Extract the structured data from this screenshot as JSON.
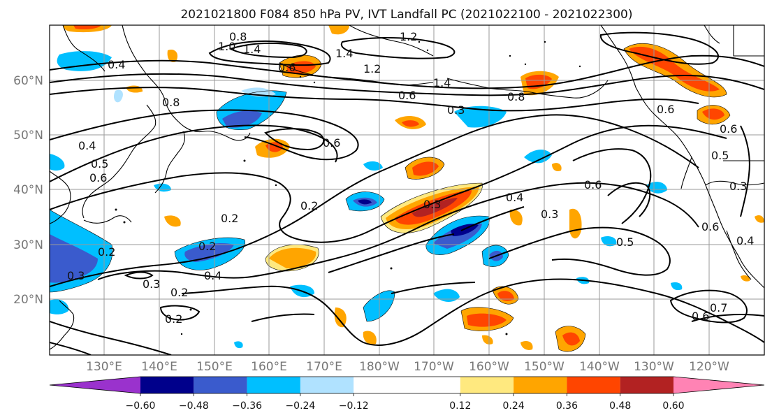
{
  "title": "2021021800 F084 850 hPa PV, IVT Landfall PC (2021022100 - 2021022300)",
  "map": {
    "lat_ticks": [
      "60°N",
      "50°N",
      "40°N",
      "30°N",
      "20°N"
    ],
    "lon_ticks": [
      "130°E",
      "140°E",
      "150°E",
      "160°E",
      "170°E",
      "180°W",
      "170°W",
      "160°W",
      "150°W",
      "140°W",
      "130°W",
      "120°W"
    ],
    "contour_color": "#000000",
    "grid_color": "#9a9a9a",
    "coastline_color": "#000000",
    "contour_labels": [
      "0.8",
      "1.0",
      "1.4",
      "1.2",
      "1.4",
      "0.6",
      "1.2",
      "0.8",
      "1.4",
      "0.8",
      "0.6",
      "0.3",
      "0.4",
      "0.6",
      "0.5",
      "0.6",
      "0.2",
      "0.2",
      "0.2",
      "0.3",
      "0.2",
      "0.4",
      "0.3",
      "0.2",
      "0.4",
      "0.6",
      "0.3",
      "0.5",
      "0.3",
      "0.5",
      "0.7",
      "0.6",
      "0.6",
      "0.4",
      "0.3",
      "0.2",
      "0.6",
      "0.4",
      "0.6"
    ]
  },
  "colorbar": {
    "tick_labels": [
      "−0.60",
      "−0.48",
      "−0.36",
      "−0.24",
      "−0.12",
      "0.12",
      "0.24",
      "0.36",
      "0.48",
      "0.60"
    ],
    "levels": [
      -0.72,
      -0.6,
      -0.48,
      -0.36,
      -0.24,
      -0.12,
      0.12,
      0.24,
      0.36,
      0.48,
      0.6,
      0.72
    ],
    "under_color": "#9a32cd",
    "over_color": "#ff83b4",
    "colors": [
      "#9a32cd",
      "#00008b",
      "#3a5bcd",
      "#00bfff",
      "#b0e2ff",
      "#ffffff",
      "#ffe97f",
      "#ffa500",
      "#ff4500",
      "#b22222",
      "#ff83b4"
    ]
  }
}
